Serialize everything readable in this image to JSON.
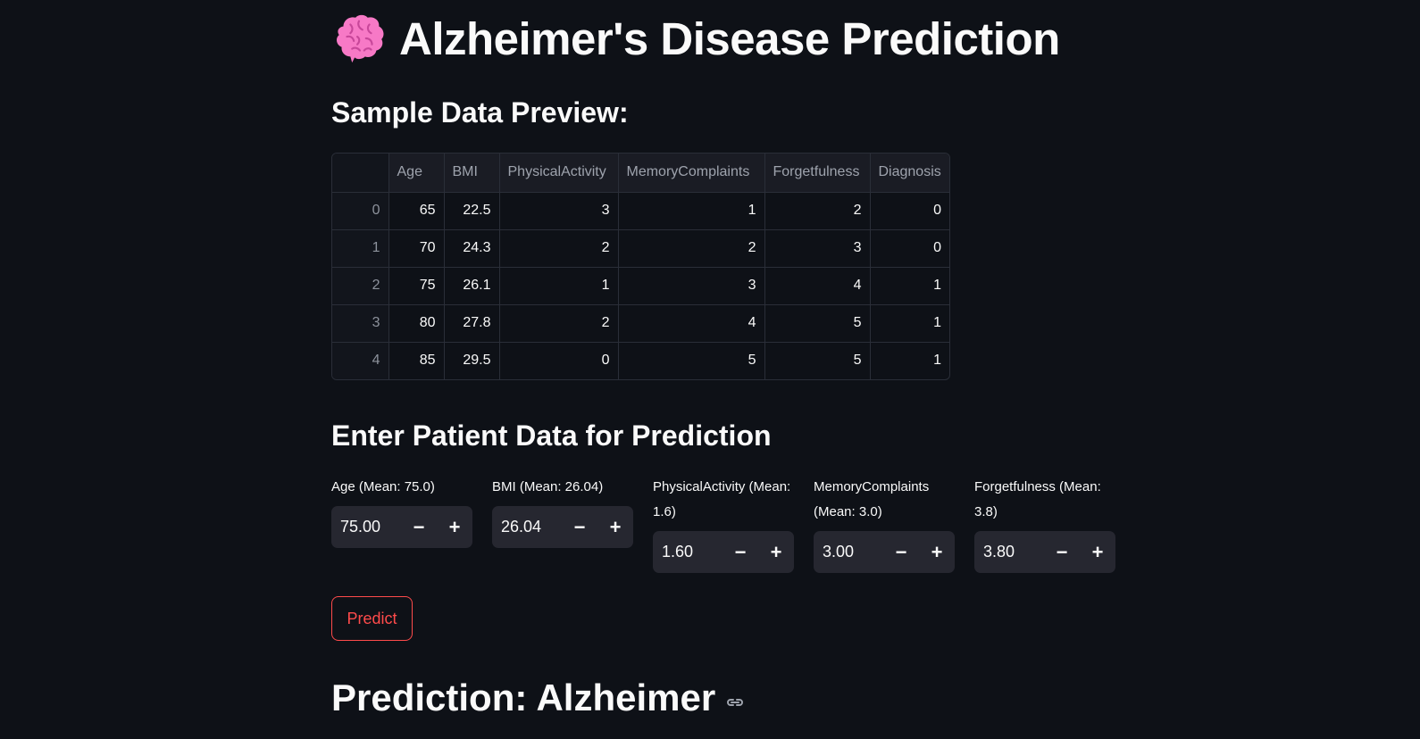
{
  "header": {
    "icon": "brain-icon",
    "title": "Alzheimer's Disease Prediction"
  },
  "sample": {
    "heading": "Sample Data Preview:",
    "columns": [
      "",
      "Age",
      "BMI",
      "PhysicalActivity",
      "MemoryComplaints",
      "Forgetfulness",
      "Diagnosis"
    ],
    "rows": [
      [
        "0",
        "65",
        "22.5",
        "3",
        "1",
        "2",
        "0"
      ],
      [
        "1",
        "70",
        "24.3",
        "2",
        "2",
        "3",
        "0"
      ],
      [
        "2",
        "75",
        "26.1",
        "1",
        "3",
        "4",
        "1"
      ],
      [
        "3",
        "80",
        "27.8",
        "2",
        "4",
        "5",
        "1"
      ],
      [
        "4",
        "85",
        "29.5",
        "0",
        "5",
        "5",
        "1"
      ]
    ]
  },
  "form": {
    "heading": "Enter Patient Data for Prediction",
    "fields": [
      {
        "label": "Age (Mean: 75.0)",
        "value": "75.00"
      },
      {
        "label": "BMI (Mean: 26.04)",
        "value": "26.04"
      },
      {
        "label": "PhysicalActivity (Mean: 1.6)",
        "value": "1.60"
      },
      {
        "label": "MemoryComplaints (Mean: 3.0)",
        "value": "3.00"
      },
      {
        "label": "Forgetfulness (Mean: 3.8)",
        "value": "3.80"
      }
    ],
    "decrement_symbol": "−",
    "increment_symbol": "+",
    "predict_label": "Predict"
  },
  "result": {
    "text": "Prediction: Alzheimer",
    "icon": "link-icon"
  },
  "colors": {
    "background": "#0e1117",
    "accent": "#ff4b4b",
    "input_bg": "#262730"
  }
}
